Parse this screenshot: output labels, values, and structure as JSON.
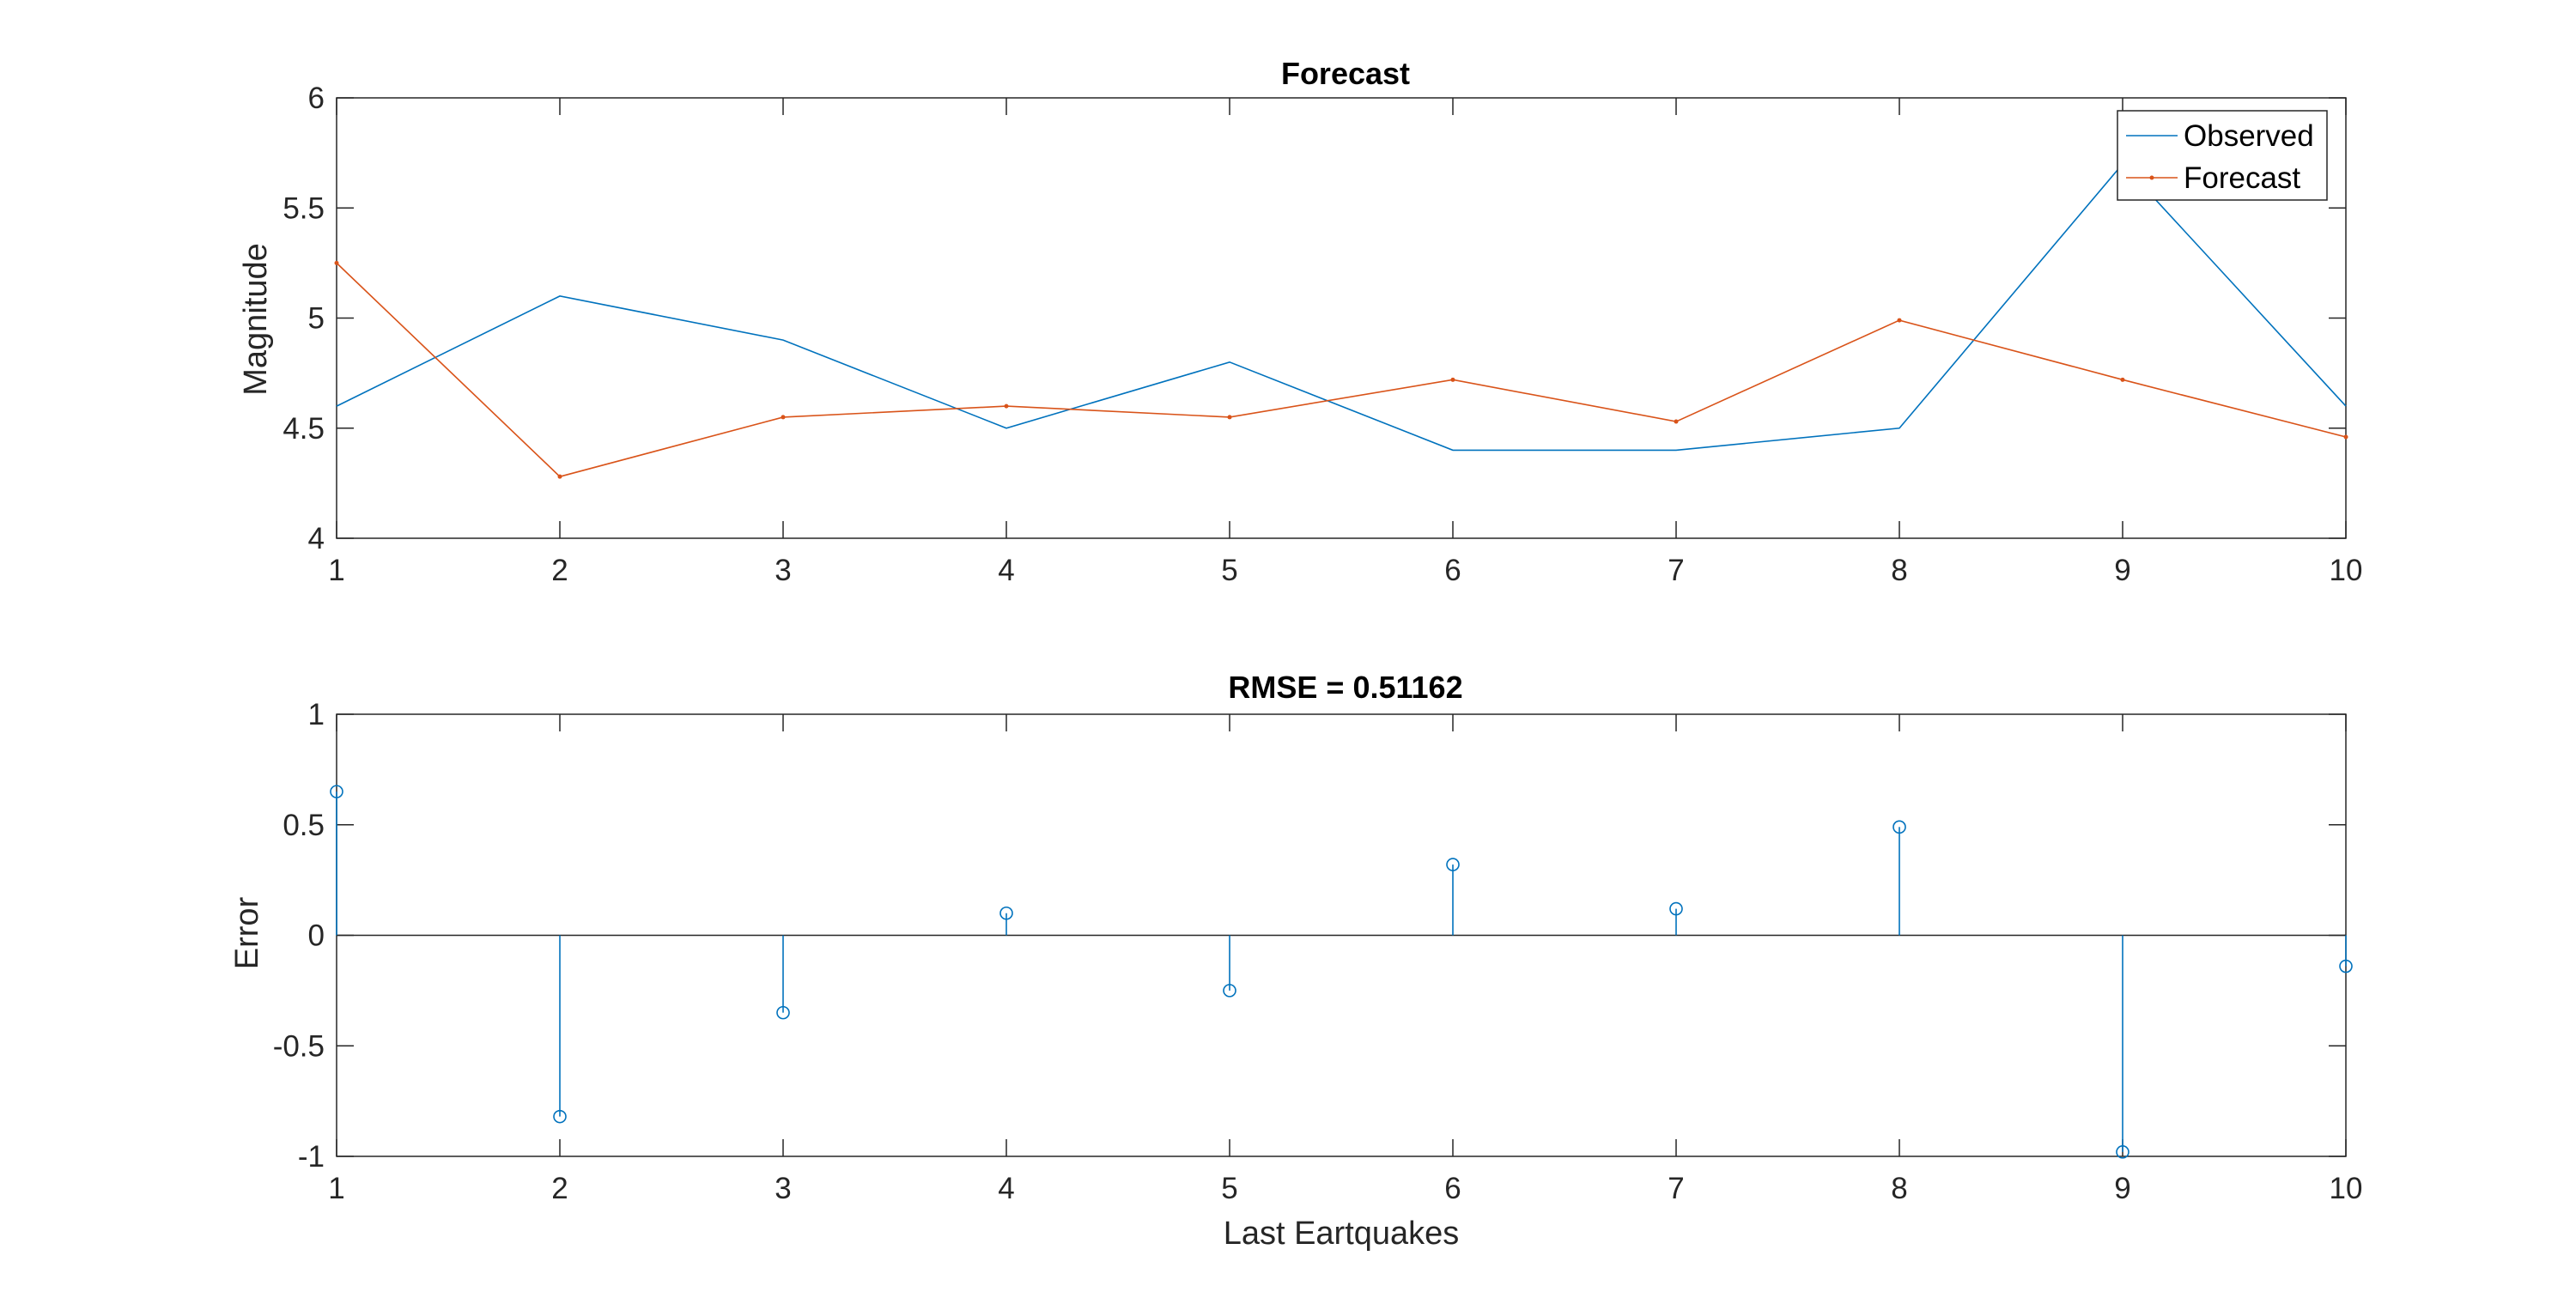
{
  "chart_data": [
    {
      "type": "line",
      "title": "Forecast",
      "xlabel": "",
      "ylabel": "Magnitude",
      "xlim": [
        1,
        10
      ],
      "ylim": [
        4,
        6
      ],
      "x": [
        1,
        2,
        3,
        4,
        5,
        6,
        7,
        8,
        9,
        10
      ],
      "xticks": [
        "1",
        "2",
        "3",
        "4",
        "5",
        "6",
        "7",
        "8",
        "9",
        "10"
      ],
      "yticks": [
        "4",
        "4.5",
        "5",
        "5.5",
        "6"
      ],
      "grid": false,
      "legend_position": "top-right",
      "series": [
        {
          "name": "Observed",
          "values": [
            4.6,
            5.1,
            4.9,
            4.5,
            4.8,
            4.4,
            4.4,
            4.5,
            5.7,
            4.6
          ],
          "color": "#0072BD",
          "marker": "none"
        },
        {
          "name": "Forecast",
          "values": [
            5.25,
            4.28,
            4.55,
            4.6,
            4.55,
            4.72,
            4.53,
            4.99,
            4.72,
            4.46
          ],
          "color": "#D95319",
          "marker": "dot"
        }
      ]
    },
    {
      "type": "stem",
      "title": "RMSE = 0.51162",
      "xlabel": "Last Eartquakes",
      "ylabel": "Error",
      "xlim": [
        1,
        10
      ],
      "ylim": [
        -1,
        1
      ],
      "x": [
        1,
        2,
        3,
        4,
        5,
        6,
        7,
        8,
        9,
        10
      ],
      "xticks": [
        "1",
        "2",
        "3",
        "4",
        "5",
        "6",
        "7",
        "8",
        "9",
        "10"
      ],
      "yticks": [
        "-1",
        "-0.5",
        "0",
        "0.5",
        "1"
      ],
      "grid": false,
      "baseline": 0,
      "series": [
        {
          "values": [
            0.65,
            -0.82,
            -0.35,
            0.1,
            -0.25,
            0.32,
            0.12,
            0.49,
            -0.98,
            -0.14
          ],
          "color": "#0072BD",
          "marker": "circle"
        }
      ]
    }
  ]
}
